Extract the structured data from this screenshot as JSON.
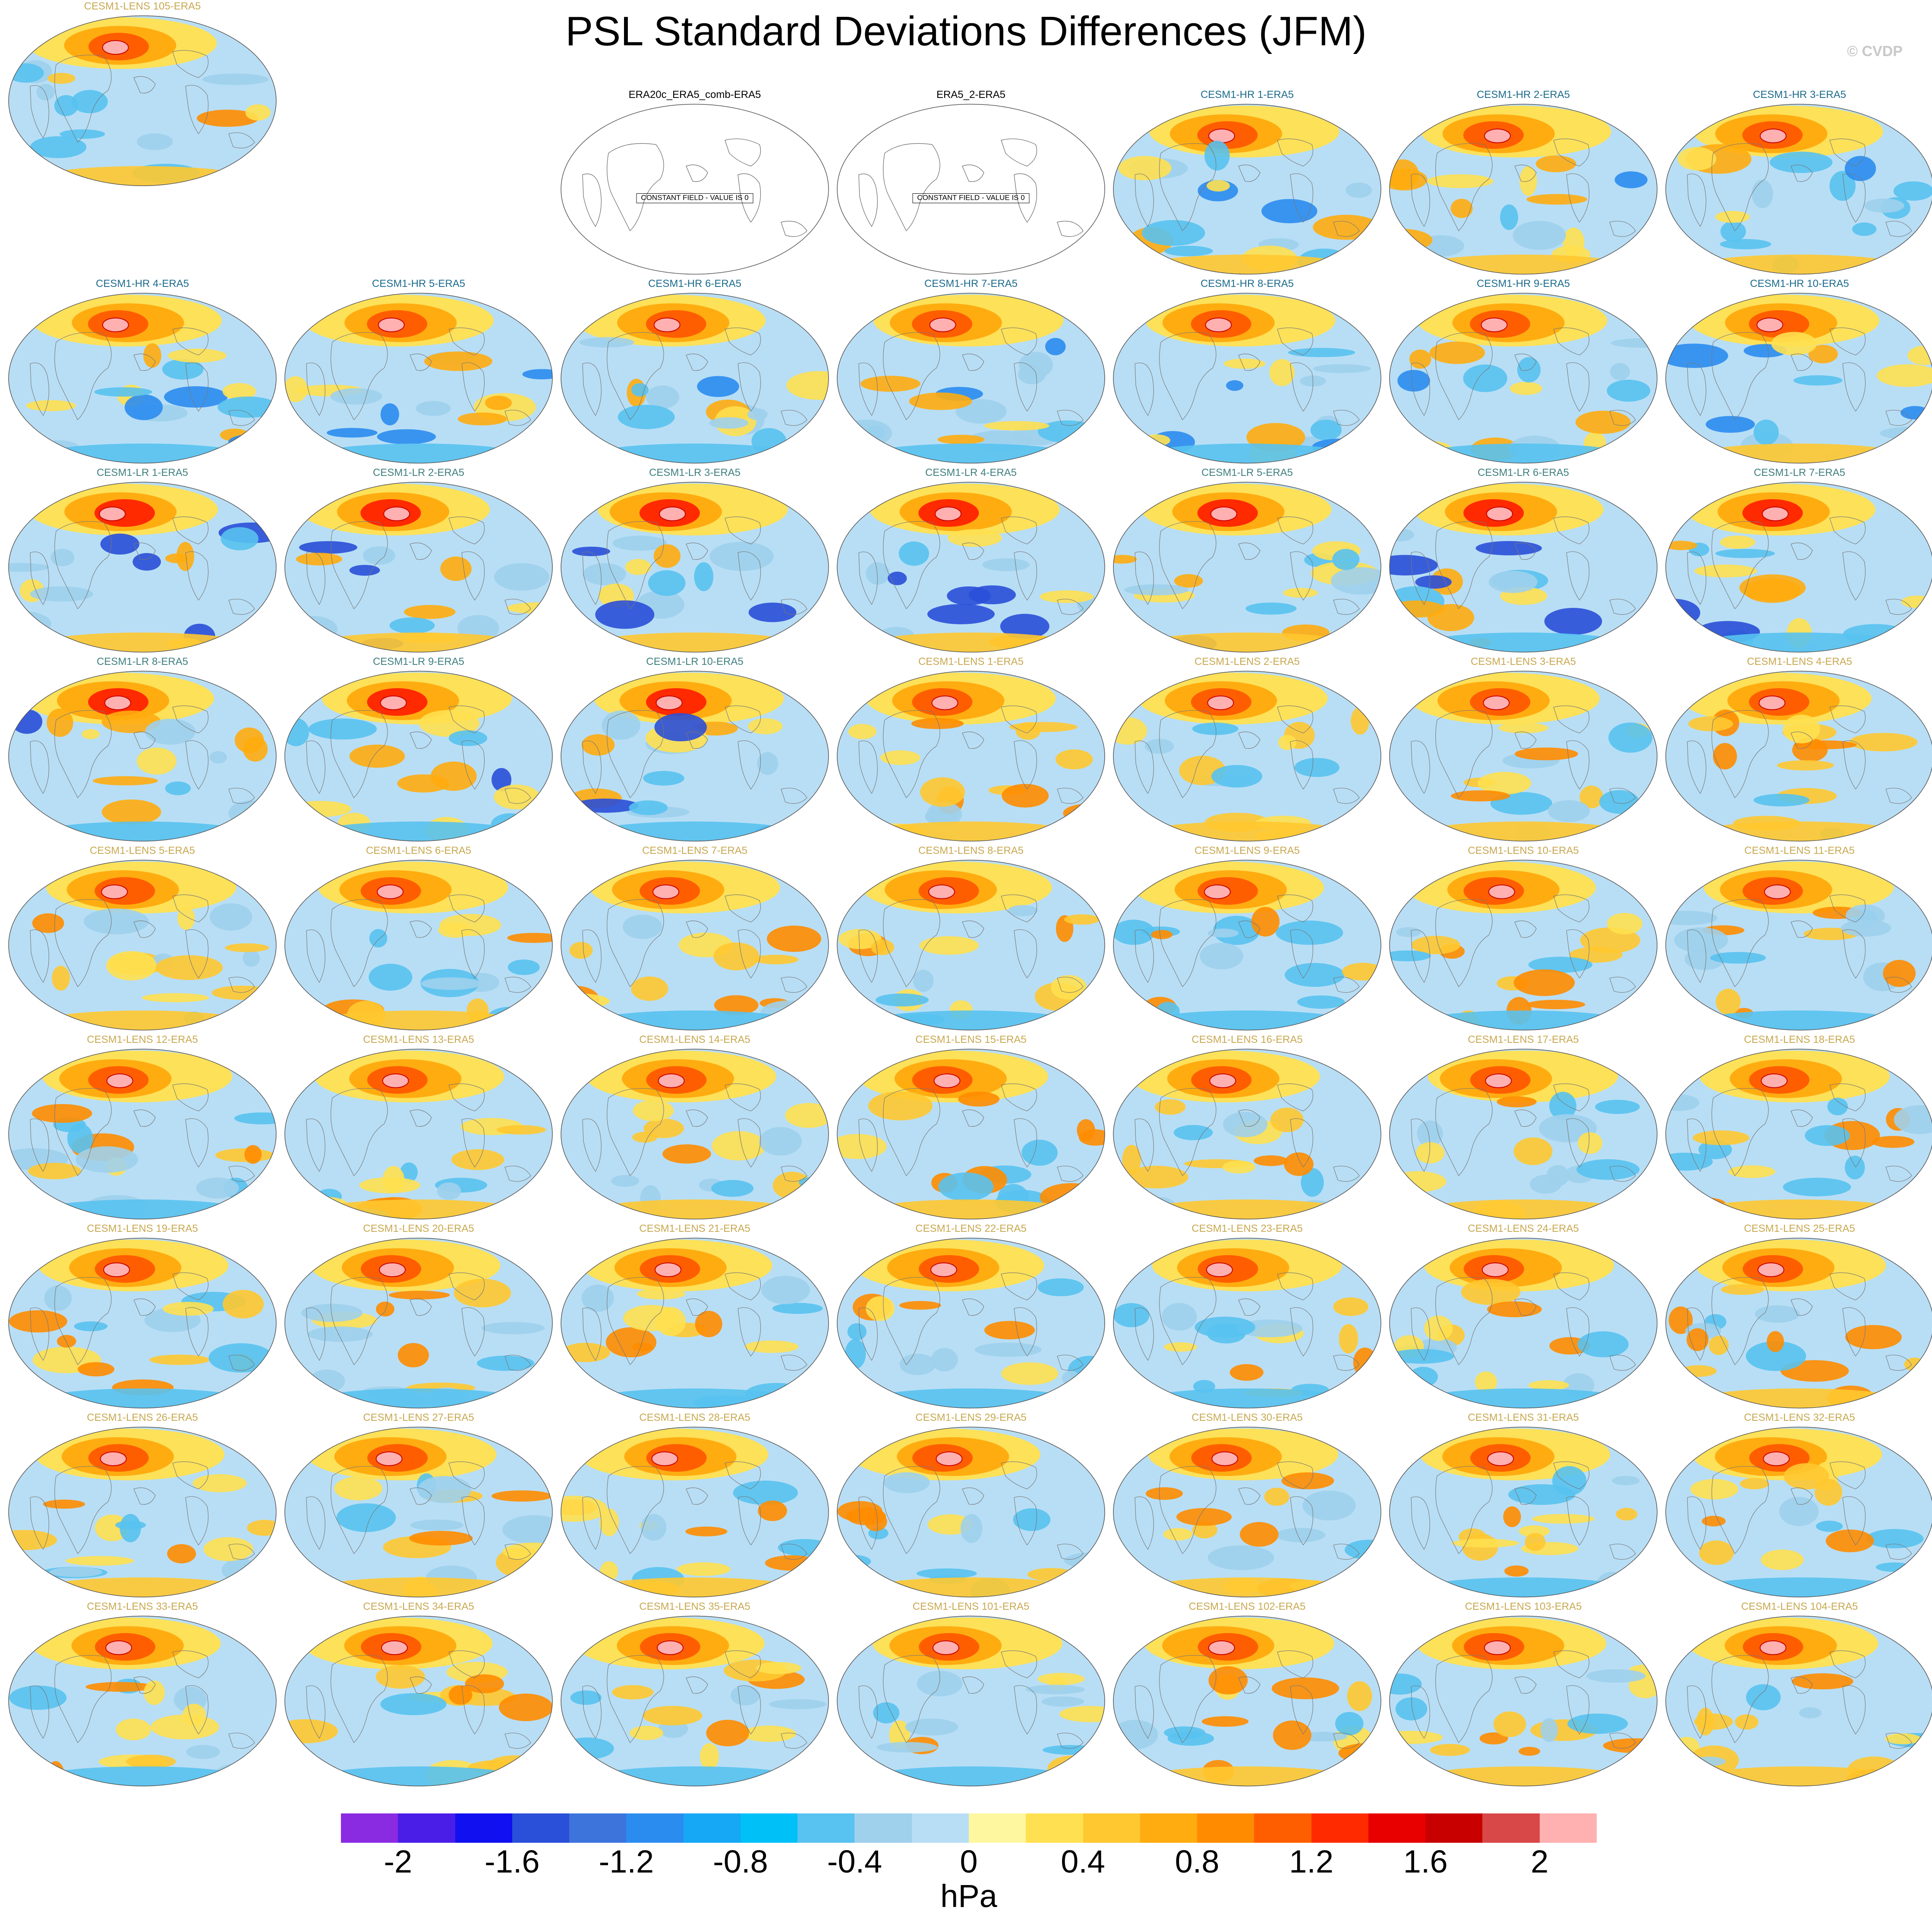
{
  "title": "PSL Standard Deviations Differences (JFM)",
  "credit": "© CVDP",
  "constant_field_label": "CONSTANT FIELD - VALUE IS 0",
  "panels": [
    {
      "label": "ERA20c_ERA5_comb-ERA5",
      "group": "obs",
      "constant": true
    },
    {
      "label": "ERA5_2-ERA5",
      "group": "obs",
      "constant": true
    },
    {
      "label": "CESM1-HR 1-ERA5",
      "group": "hr"
    },
    {
      "label": "CESM1-HR 2-ERA5",
      "group": "hr"
    },
    {
      "label": "CESM1-HR 3-ERA5",
      "group": "hr"
    },
    {
      "label": "CESM1-HR 4-ERA5",
      "group": "hr"
    },
    {
      "label": "CESM1-HR 5-ERA5",
      "group": "hr"
    },
    {
      "label": "CESM1-HR 6-ERA5",
      "group": "hr"
    },
    {
      "label": "CESM1-HR 7-ERA5",
      "group": "hr"
    },
    {
      "label": "CESM1-HR 8-ERA5",
      "group": "hr"
    },
    {
      "label": "CESM1-HR 9-ERA5",
      "group": "hr"
    },
    {
      "label": "CESM1-HR 10-ERA5",
      "group": "hr"
    },
    {
      "label": "CESM1-LR 1-ERA5",
      "group": "lr"
    },
    {
      "label": "CESM1-LR 2-ERA5",
      "group": "lr"
    },
    {
      "label": "CESM1-LR 3-ERA5",
      "group": "lr"
    },
    {
      "label": "CESM1-LR 4-ERA5",
      "group": "lr"
    },
    {
      "label": "CESM1-LR 5-ERA5",
      "group": "lr"
    },
    {
      "label": "CESM1-LR 6-ERA5",
      "group": "lr"
    },
    {
      "label": "CESM1-LR 7-ERA5",
      "group": "lr"
    },
    {
      "label": "CESM1-LR 8-ERA5",
      "group": "lr"
    },
    {
      "label": "CESM1-LR 9-ERA5",
      "group": "lr"
    },
    {
      "label": "CESM1-LR 10-ERA5",
      "group": "lr"
    },
    {
      "label": "CESM1-LENS 1-ERA5",
      "group": "lens"
    },
    {
      "label": "CESM1-LENS 2-ERA5",
      "group": "lens"
    },
    {
      "label": "CESM1-LENS 3-ERA5",
      "group": "lens"
    },
    {
      "label": "CESM1-LENS 4-ERA5",
      "group": "lens"
    },
    {
      "label": "CESM1-LENS 5-ERA5",
      "group": "lens"
    },
    {
      "label": "CESM1-LENS 6-ERA5",
      "group": "lens"
    },
    {
      "label": "CESM1-LENS 7-ERA5",
      "group": "lens"
    },
    {
      "label": "CESM1-LENS 8-ERA5",
      "group": "lens"
    },
    {
      "label": "CESM1-LENS 9-ERA5",
      "group": "lens"
    },
    {
      "label": "CESM1-LENS 10-ERA5",
      "group": "lens"
    },
    {
      "label": "CESM1-LENS 11-ERA5",
      "group": "lens"
    },
    {
      "label": "CESM1-LENS 12-ERA5",
      "group": "lens"
    },
    {
      "label": "CESM1-LENS 13-ERA5",
      "group": "lens"
    },
    {
      "label": "CESM1-LENS 14-ERA5",
      "group": "lens"
    },
    {
      "label": "CESM1-LENS 15-ERA5",
      "group": "lens"
    },
    {
      "label": "CESM1-LENS 16-ERA5",
      "group": "lens"
    },
    {
      "label": "CESM1-LENS 17-ERA5",
      "group": "lens"
    },
    {
      "label": "CESM1-LENS 18-ERA5",
      "group": "lens"
    },
    {
      "label": "CESM1-LENS 19-ERA5",
      "group": "lens"
    },
    {
      "label": "CESM1-LENS 20-ERA5",
      "group": "lens"
    },
    {
      "label": "CESM1-LENS 21-ERA5",
      "group": "lens"
    },
    {
      "label": "CESM1-LENS 22-ERA5",
      "group": "lens"
    },
    {
      "label": "CESM1-LENS 23-ERA5",
      "group": "lens"
    },
    {
      "label": "CESM1-LENS 24-ERA5",
      "group": "lens"
    },
    {
      "label": "CESM1-LENS 25-ERA5",
      "group": "lens"
    },
    {
      "label": "CESM1-LENS 26-ERA5",
      "group": "lens"
    },
    {
      "label": "CESM1-LENS 27-ERA5",
      "group": "lens"
    },
    {
      "label": "CESM1-LENS 28-ERA5",
      "group": "lens"
    },
    {
      "label": "CESM1-LENS 29-ERA5",
      "group": "lens"
    },
    {
      "label": "CESM1-LENS 30-ERA5",
      "group": "lens"
    },
    {
      "label": "CESM1-LENS 31-ERA5",
      "group": "lens"
    },
    {
      "label": "CESM1-LENS 32-ERA5",
      "group": "lens"
    },
    {
      "label": "CESM1-LENS 33-ERA5",
      "group": "lens"
    },
    {
      "label": "CESM1-LENS 34-ERA5",
      "group": "lens"
    },
    {
      "label": "CESM1-LENS 35-ERA5",
      "group": "lens"
    },
    {
      "label": "CESM1-LENS 101-ERA5",
      "group": "lens"
    },
    {
      "label": "CESM1-LENS 102-ERA5",
      "group": "lens"
    },
    {
      "label": "CESM1-LENS 103-ERA5",
      "group": "lens"
    },
    {
      "label": "CESM1-LENS 104-ERA5",
      "group": "lens"
    },
    {
      "label": "CESM1-LENS 105-ERA5",
      "group": "lens"
    }
  ],
  "colorbar": {
    "colors": [
      "#8a2be2",
      "#4b1ee8",
      "#1010f0",
      "#2a4fd8",
      "#3c74dc",
      "#2b8cf0",
      "#16a8f5",
      "#00c0f8",
      "#58c2f0",
      "#9fd0ec",
      "#b8def5",
      "#fff7a0",
      "#ffe050",
      "#ffc830",
      "#ffac10",
      "#ff8c00",
      "#ff5e00",
      "#ff2a00",
      "#e80000",
      "#c80000",
      "#d84848",
      "#ffb0b0"
    ],
    "tick_labels": [
      "-2",
      "-1.6",
      "-1.2",
      "-0.8",
      "-0.4",
      "0",
      "0.4",
      "0.8",
      "1.2",
      "1.6",
      "2"
    ],
    "units": "hPa"
  }
}
